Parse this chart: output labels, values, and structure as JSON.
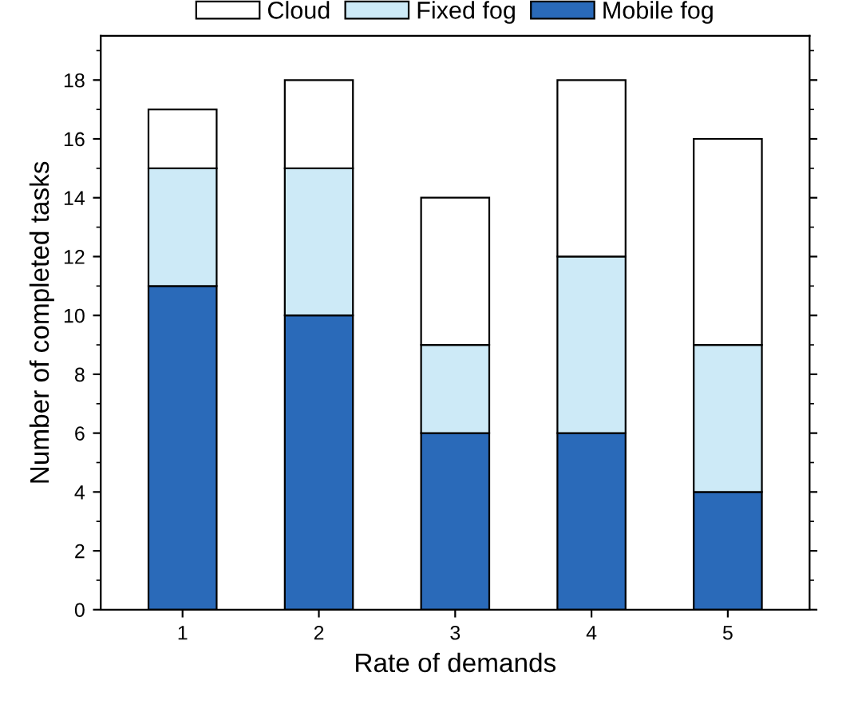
{
  "chart_data": {
    "type": "bar",
    "stacked": true,
    "xlabel": "Rate of demands",
    "ylabel": "Number of completed tasks",
    "categories": [
      "1",
      "2",
      "3",
      "4",
      "5"
    ],
    "series": [
      {
        "name": "Mobile fog",
        "color": "#2a6ab9",
        "values": [
          11,
          10,
          6,
          6,
          4
        ]
      },
      {
        "name": "Fixed fog",
        "color": "#cdeaf7",
        "values": [
          4,
          5,
          3,
          6,
          5
        ]
      },
      {
        "name": "Cloud",
        "color": "#ffffff",
        "values": [
          2,
          3,
          5,
          6,
          7
        ]
      }
    ],
    "ylim": [
      0,
      19.5
    ],
    "yticks": [
      0,
      2,
      4,
      6,
      8,
      10,
      12,
      14,
      16,
      18
    ],
    "grid": false,
    "legend": "top"
  }
}
